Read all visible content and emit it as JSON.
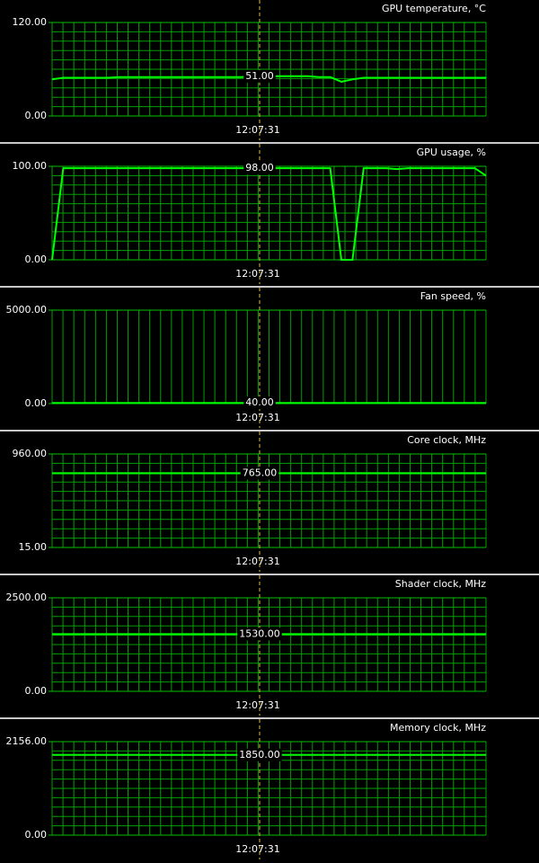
{
  "chart_data": [
    {
      "type": "line",
      "title": "GPU temperature, °C",
      "ylim": [
        0,
        120
      ],
      "yticks": [
        {
          "value": 0,
          "label": "0.00"
        },
        {
          "value": 120,
          "label": "120.00"
        }
      ],
      "grid": "both",
      "color": "#00ff00",
      "annotation": "51.00",
      "cursor_time": "12:07:31",
      "values": [
        47,
        49,
        49,
        49,
        49,
        49,
        50,
        50,
        50,
        50,
        50,
        50,
        50,
        50,
        50,
        50,
        50,
        50,
        51,
        51,
        51,
        51,
        51,
        51,
        50,
        50,
        44,
        47,
        49,
        49,
        49,
        49,
        49,
        49,
        49,
        49,
        49,
        49,
        49,
        49
      ]
    },
    {
      "type": "line",
      "title": "GPU usage, %",
      "ylim": [
        0,
        100
      ],
      "yticks": [
        {
          "value": 0,
          "label": "0.00"
        },
        {
          "value": 100,
          "label": "100.00"
        }
      ],
      "grid": "both",
      "color": "#00ff00",
      "annotation": "98.00",
      "cursor_time": "12:07:31",
      "values": [
        0,
        98,
        98,
        98,
        98,
        98,
        98,
        98,
        98,
        98,
        98,
        98,
        98,
        98,
        98,
        98,
        98,
        98,
        98,
        98,
        98,
        98,
        98,
        98,
        98,
        98,
        0,
        0,
        98,
        98,
        98,
        97,
        98,
        98,
        98,
        98,
        98,
        98,
        98,
        90
      ]
    },
    {
      "type": "line",
      "title": "Fan speed, %",
      "ylim": [
        0,
        5000
      ],
      "yticks": [
        {
          "value": 0,
          "label": "0.00"
        },
        {
          "value": 5000,
          "label": "5000.00"
        }
      ],
      "grid": "vertical",
      "color": "#00ff00",
      "annotation": "40.00",
      "cursor_time": "12:07:31",
      "values": [
        40,
        40,
        40,
        40,
        40,
        40,
        40,
        40,
        40,
        40,
        40,
        40,
        40,
        40,
        40,
        40,
        40,
        40,
        40,
        40,
        40,
        40,
        40,
        40,
        40,
        40,
        40,
        40,
        40,
        40,
        40,
        40,
        40,
        40,
        40,
        40,
        40,
        40,
        40,
        40
      ]
    },
    {
      "type": "line",
      "title": "Core clock, MHz",
      "ylim": [
        15,
        960
      ],
      "yticks": [
        {
          "value": 15,
          "label": "15.00"
        },
        {
          "value": 960,
          "label": "960.00"
        }
      ],
      "grid": "both",
      "color": "#00ff00",
      "annotation": "765.00",
      "cursor_time": "12:07:31",
      "values": [
        765,
        765,
        765,
        765,
        765,
        765,
        765,
        765,
        765,
        765,
        765,
        765,
        765,
        765,
        765,
        765,
        765,
        765,
        765,
        765,
        765,
        765,
        765,
        765,
        765,
        765,
        765,
        765,
        765,
        765,
        765,
        765,
        765,
        765,
        765,
        765,
        765,
        765,
        765,
        765
      ]
    },
    {
      "type": "line",
      "title": "Shader clock, MHz",
      "ylim": [
        0,
        2500
      ],
      "yticks": [
        {
          "value": 0,
          "label": "0.00"
        },
        {
          "value": 2500,
          "label": "2500.00"
        }
      ],
      "grid": "both",
      "color": "#00ff00",
      "annotation": "1530.00",
      "cursor_time": "12:07:31",
      "values": [
        1530,
        1530,
        1530,
        1530,
        1530,
        1530,
        1530,
        1530,
        1530,
        1530,
        1530,
        1530,
        1530,
        1530,
        1530,
        1530,
        1530,
        1530,
        1530,
        1530,
        1530,
        1530,
        1530,
        1530,
        1530,
        1530,
        1530,
        1530,
        1530,
        1530,
        1530,
        1530,
        1530,
        1530,
        1530,
        1530,
        1530,
        1530,
        1530,
        1530
      ]
    },
    {
      "type": "line",
      "title": "Memory clock, MHz",
      "ylim": [
        0,
        2156
      ],
      "yticks": [
        {
          "value": 0,
          "label": "0.00"
        },
        {
          "value": 2156,
          "label": "2156.00"
        }
      ],
      "grid": "both",
      "color": "#00ff00",
      "annotation": "1850.00",
      "cursor_time": "12:07:31",
      "values": [
        1850,
        1850,
        1850,
        1850,
        1850,
        1850,
        1850,
        1850,
        1850,
        1850,
        1850,
        1850,
        1850,
        1850,
        1850,
        1850,
        1850,
        1850,
        1850,
        1850,
        1850,
        1850,
        1850,
        1850,
        1850,
        1850,
        1850,
        1850,
        1850,
        1850,
        1850,
        1850,
        1850,
        1850,
        1850,
        1850,
        1850,
        1850,
        1850,
        1850
      ]
    }
  ]
}
